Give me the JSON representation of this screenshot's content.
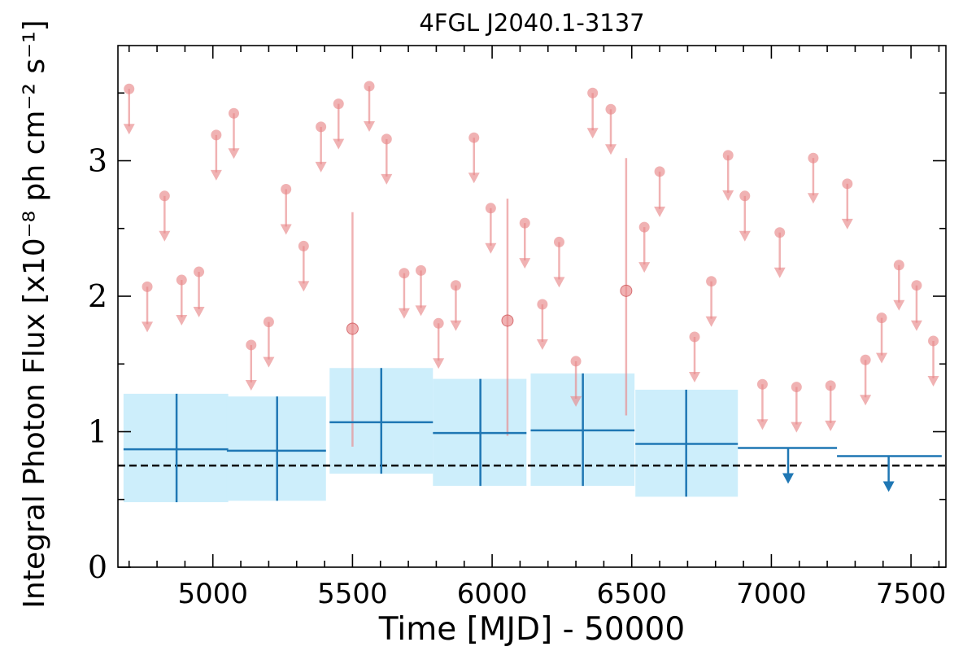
{
  "chart_data": {
    "type": "scatter",
    "title": "4FGL J2040.1-3137",
    "xlabel": "Time [MJD] - 50000",
    "ylabel": "Integral Photon Flux [x10⁻⁸ ph cm⁻² s⁻¹]",
    "xlim": [
      4660,
      7625
    ],
    "ylim": [
      0,
      3.85
    ],
    "xticks": [
      5000,
      5500,
      6000,
      6500,
      7000,
      7500
    ],
    "xtick_labels": [
      "5000",
      "5500",
      "6000",
      "6500",
      "7000",
      "7500"
    ],
    "yticks": [
      0,
      1,
      2,
      3
    ],
    "ytick_labels": [
      "0",
      "1",
      "2",
      "3"
    ],
    "reference_line": 0.75,
    "colors": {
      "short_bins": "#e8888a",
      "long_bins": "#1f77b4",
      "long_bins_band": "#cdeefb",
      "reference_line": "#000000"
    },
    "short_bin_upper_limits": {
      "x": [
        4700,
        4765,
        4827,
        4888,
        4950,
        5012,
        5075,
        5137,
        5200,
        5262,
        5325,
        5387,
        5450,
        5560,
        5622,
        5685,
        5745,
        5808,
        5870,
        5935,
        5995,
        6117,
        6180,
        6240,
        6300,
        6360,
        6425,
        6545,
        6600,
        6725,
        6785,
        6845,
        6905,
        6968,
        7030,
        7090,
        7150,
        7212,
        7272,
        7337,
        7395,
        7457,
        7520,
        7580
      ],
      "y": [
        3.53,
        2.07,
        2.74,
        2.12,
        2.18,
        3.19,
        3.35,
        1.64,
        1.81,
        2.79,
        2.37,
        3.25,
        3.42,
        3.55,
        3.16,
        2.17,
        2.19,
        1.8,
        2.08,
        3.17,
        2.65,
        2.54,
        1.94,
        2.4,
        1.52,
        3.5,
        3.38,
        2.51,
        2.92,
        1.7,
        2.11,
        3.04,
        2.74,
        1.35,
        2.47,
        1.33,
        3.02,
        1.34,
        2.83,
        1.53,
        1.84,
        2.23,
        2.08,
        1.67
      ]
    },
    "short_bin_detections": {
      "x": [
        5500,
        6055,
        6480
      ],
      "y": [
        1.76,
        1.82,
        2.04
      ],
      "y_low": [
        0.89,
        0.97,
        1.12
      ],
      "y_high": [
        2.62,
        2.72,
        3.02
      ]
    },
    "long_bin_detections": {
      "x": [
        4870,
        5230,
        5603,
        5958,
        6325,
        6695
      ],
      "x_low": [
        4680,
        5050,
        5418,
        5788,
        6138,
        6513
      ],
      "x_high": [
        5055,
        5405,
        5788,
        6123,
        6510,
        6880
      ],
      "y": [
        0.87,
        0.86,
        1.07,
        0.99,
        1.01,
        0.91
      ],
      "y_low": [
        0.48,
        0.49,
        0.69,
        0.6,
        0.6,
        0.52
      ],
      "y_high": [
        1.28,
        1.26,
        1.47,
        1.39,
        1.43,
        1.31
      ]
    },
    "long_bin_upper_limits": {
      "x": [
        7060,
        7420
      ],
      "x_low": [
        6880,
        7235
      ],
      "x_high": [
        7235,
        7610
      ],
      "y": [
        0.88,
        0.82
      ]
    }
  }
}
